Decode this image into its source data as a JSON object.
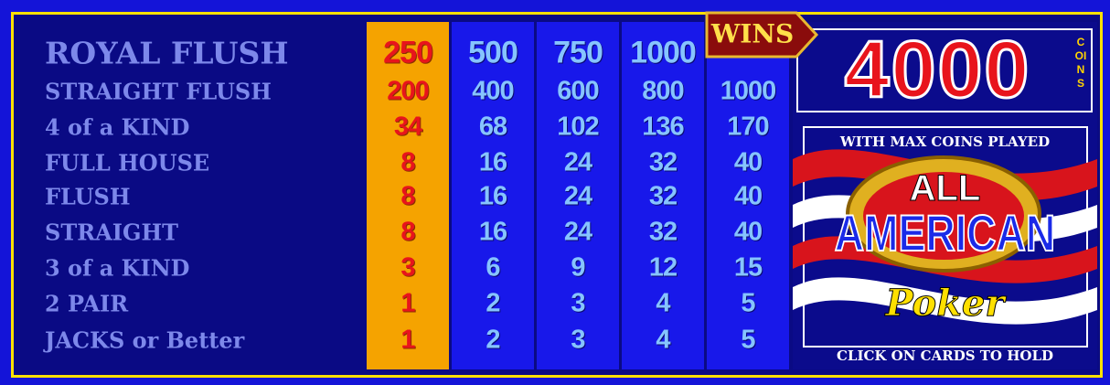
{
  "paytable": {
    "rows": [
      {
        "hand": "ROYAL FLUSH",
        "pays": [
          "250",
          "500",
          "750",
          "1000"
        ]
      },
      {
        "hand": "STRAIGHT FLUSH",
        "pays": [
          "200",
          "400",
          "600",
          "800",
          "1000"
        ]
      },
      {
        "hand": "4 of a KIND",
        "pays": [
          "34",
          "68",
          "102",
          "136",
          "170"
        ]
      },
      {
        "hand": "FULL HOUSE",
        "pays": [
          "8",
          "16",
          "24",
          "32",
          "40"
        ]
      },
      {
        "hand": "FLUSH",
        "pays": [
          "8",
          "16",
          "24",
          "32",
          "40"
        ]
      },
      {
        "hand": "STRAIGHT",
        "pays": [
          "8",
          "16",
          "24",
          "32",
          "40"
        ]
      },
      {
        "hand": "3 of a KIND",
        "pays": [
          "3",
          "6",
          "9",
          "12",
          "15"
        ]
      },
      {
        "hand": "2 PAIR",
        "pays": [
          "1",
          "2",
          "3",
          "4",
          "5"
        ]
      },
      {
        "hand": "JACKS or Better",
        "pays": [
          "1",
          "2",
          "3",
          "4",
          "5"
        ]
      }
    ]
  },
  "wins": {
    "label": "WINS",
    "amount": "4000",
    "unit": "COINS"
  },
  "logo": {
    "caption": "WITH MAX COINS PLAYED",
    "line1": "ALL",
    "line2": "AMERICAN",
    "line3": "Poker"
  },
  "footer": "CLICK ON CARDS TO HOLD"
}
